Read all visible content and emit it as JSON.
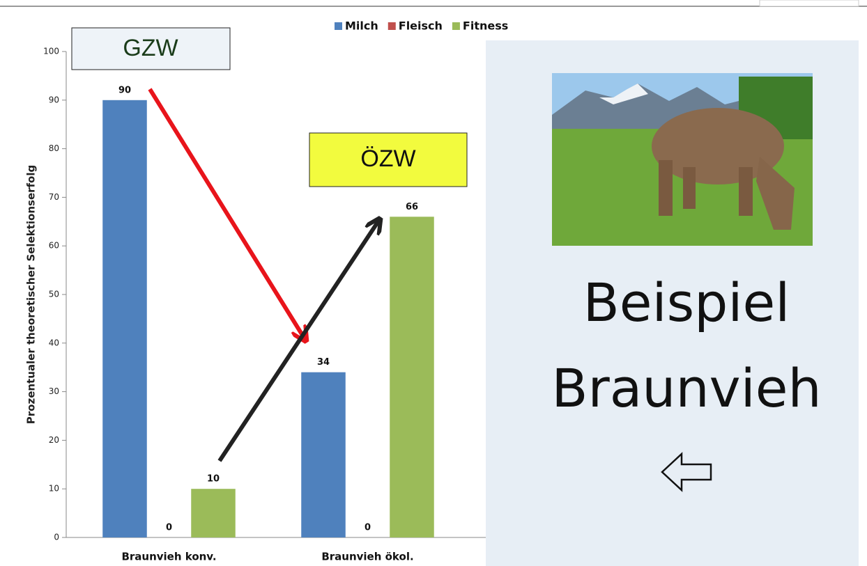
{
  "chart_data": {
    "type": "bar",
    "y_label": "Prozentualer theoretischer Selektionserfolg",
    "categories": [
      "Braunvieh konv.",
      "Braunvieh ökol."
    ],
    "series": [
      {
        "name": "Milch",
        "color": "#4f81bd",
        "values": [
          90,
          34
        ]
      },
      {
        "name": "Fleisch",
        "color": "#c0504d",
        "values": [
          0,
          0
        ]
      },
      {
        "name": "Fitness",
        "color": "#9bbb59",
        "values": [
          10,
          66
        ]
      }
    ],
    "ylim": [
      0,
      100
    ],
    "yticks": [
      0,
      10,
      20,
      30,
      40,
      50,
      60,
      70,
      80,
      90,
      100
    ],
    "grid": false,
    "legend": "top",
    "annotations": [
      "GZW",
      "ÖZW"
    ]
  },
  "panel": {
    "lines": [
      "Beispiel",
      "Braunvieh"
    ]
  }
}
